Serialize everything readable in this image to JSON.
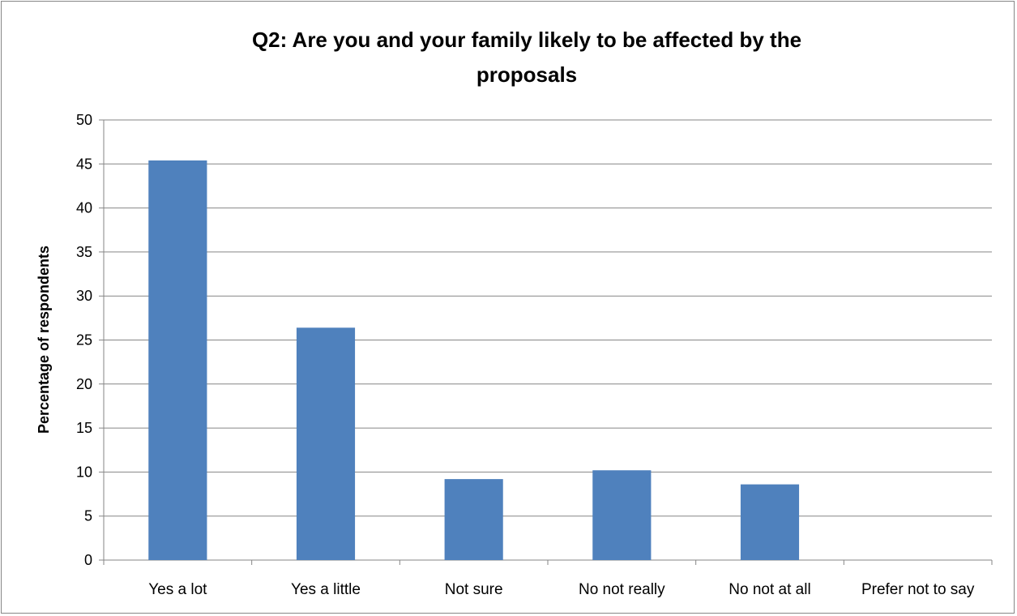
{
  "chart_data": {
    "type": "bar",
    "title_lines": [
      "Q2: Are you and your family likely to be affected by the",
      "proposals"
    ],
    "title": "Q2: Are you and your family likely to be affected by the proposals",
    "xlabel": "",
    "ylabel": "Percentage of respondents",
    "categories": [
      "Yes a lot",
      "Yes a little",
      "Not sure",
      "No not really",
      "No not at all",
      "Prefer not to say"
    ],
    "values": [
      45.4,
      26.4,
      9.2,
      10.2,
      8.6,
      0
    ],
    "ylim": [
      0,
      50
    ],
    "yticks": [
      0,
      5,
      10,
      15,
      20,
      25,
      30,
      35,
      40,
      45,
      50
    ],
    "grid": true,
    "legend": "none",
    "bar_color": "#4f81bd",
    "grid_color": "#868686"
  }
}
